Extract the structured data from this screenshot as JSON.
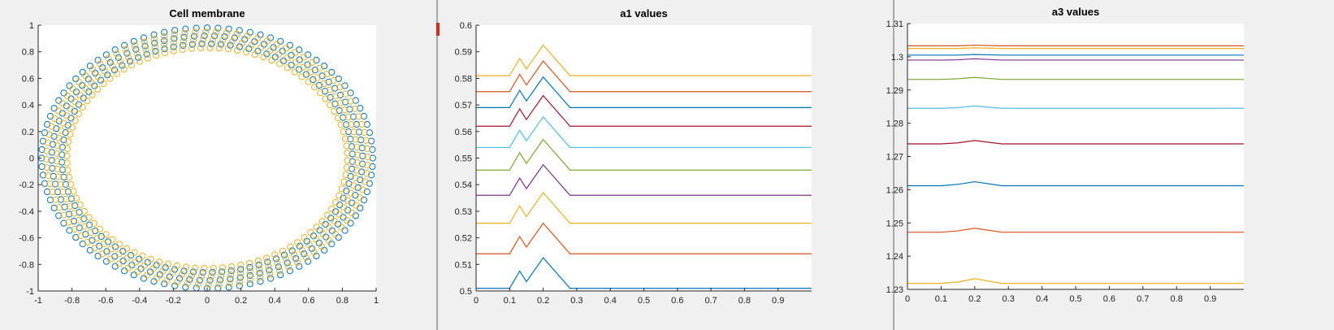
{
  "chart_data": [
    {
      "type": "scatter",
      "title": "Cell membrane",
      "xlim": [
        -1,
        1
      ],
      "ylim": [
        -1,
        1
      ],
      "xticks": [
        -1,
        -0.8,
        -0.6,
        -0.4,
        -0.2,
        0,
        0.2,
        0.4,
        0.6,
        0.8,
        1
      ],
      "yticks": [
        -1,
        -0.8,
        -0.6,
        -0.4,
        -0.2,
        0,
        0.2,
        0.4,
        0.6,
        0.8,
        1
      ],
      "xtick_labels": [
        "-1",
        "-0.8",
        "-0.6",
        "-0.4",
        "-0.2",
        "0",
        "0.2",
        "0.4",
        "0.6",
        "0.8",
        "1"
      ],
      "ytick_labels": [
        "-1",
        "-0.8",
        "-0.6",
        "-0.4",
        "-0.2",
        "0",
        "0.2",
        "0.4",
        "0.6",
        "0.8",
        "1"
      ],
      "marker": "circle-open",
      "points_per_ring": 96,
      "series": [
        {
          "color": "#0072bd",
          "rings": [
            {
              "rx": 0.98,
              "ry": 0.98,
              "phase": 0
            },
            {
              "rx": 0.92,
              "ry": 0.92,
              "phase": 0.018
            },
            {
              "rx": 0.86,
              "ry": 0.86,
              "phase": 0.036
            }
          ]
        },
        {
          "color": "#edb120",
          "rings": [
            {
              "rx": 0.95,
              "ry": 0.95,
              "phase": 0.009
            },
            {
              "rx": 0.89,
              "ry": 0.89,
              "phase": 0.027
            },
            {
              "rx": 0.83,
              "ry": 0.83,
              "phase": 0.045
            }
          ]
        }
      ]
    },
    {
      "type": "line",
      "title": "a1 values",
      "xlim": [
        0,
        1
      ],
      "ylim": [
        0.5,
        0.6
      ],
      "xticks": [
        0,
        0.1,
        0.2,
        0.3,
        0.4,
        0.5,
        0.6,
        0.7,
        0.8,
        0.9
      ],
      "xtick_labels": [
        "0",
        "0.1",
        "0.2",
        "0.3",
        "0.4",
        "0.5",
        "0.6",
        "0.7",
        "0.8",
        "0.9"
      ],
      "yticks": [
        0.5,
        0.51,
        0.52,
        0.53,
        0.54,
        0.55,
        0.56,
        0.57,
        0.58,
        0.59,
        0.6
      ],
      "ytick_labels": [
        "0.5",
        "0.51",
        "0.52",
        "0.53",
        "0.54",
        "0.55",
        "0.56",
        "0.57",
        "0.58",
        "0.59",
        "0.6"
      ],
      "x": [
        0,
        0.1,
        0.13,
        0.15,
        0.2,
        0.28,
        1
      ],
      "series": [
        {
          "color": "#0072bd",
          "values": [
            0.501,
            0.501,
            0.5075,
            0.5035,
            0.5125,
            0.501,
            0.501
          ]
        },
        {
          "color": "#d95319",
          "values": [
            0.514,
            0.514,
            0.5205,
            0.5165,
            0.5255,
            0.514,
            0.514
          ]
        },
        {
          "color": "#edb120",
          "values": [
            0.5255,
            0.5255,
            0.532,
            0.528,
            0.537,
            0.5255,
            0.5255
          ]
        },
        {
          "color": "#7e2f8e",
          "values": [
            0.536,
            0.536,
            0.5425,
            0.5385,
            0.5475,
            0.536,
            0.536
          ]
        },
        {
          "color": "#77ac30",
          "values": [
            0.5455,
            0.5455,
            0.552,
            0.548,
            0.557,
            0.5455,
            0.5455
          ]
        },
        {
          "color": "#4dbeee",
          "values": [
            0.554,
            0.554,
            0.5605,
            0.5565,
            0.5655,
            0.554,
            0.554
          ]
        },
        {
          "color": "#a2142f",
          "values": [
            0.562,
            0.562,
            0.5685,
            0.5645,
            0.5735,
            0.562,
            0.562
          ]
        },
        {
          "color": "#0072bd",
          "values": [
            0.569,
            0.569,
            0.5755,
            0.5715,
            0.5805,
            0.569,
            0.569
          ]
        },
        {
          "color": "#d95319",
          "values": [
            0.575,
            0.575,
            0.5815,
            0.5775,
            0.5865,
            0.575,
            0.575
          ]
        },
        {
          "color": "#edb120",
          "values": [
            0.581,
            0.581,
            0.5875,
            0.5835,
            0.5925,
            0.581,
            0.581
          ]
        }
      ]
    },
    {
      "type": "line",
      "title": "a3 values",
      "xlim": [
        0,
        1
      ],
      "ylim": [
        1.23,
        1.31
      ],
      "xticks": [
        0,
        0.1,
        0.2,
        0.3,
        0.4,
        0.5,
        0.6,
        0.7,
        0.8,
        0.9
      ],
      "xtick_labels": [
        "0",
        "0.1",
        "0.2",
        "0.3",
        "0.4",
        "0.5",
        "0.6",
        "0.7",
        "0.8",
        "0.9"
      ],
      "yticks": [
        1.23,
        1.24,
        1.25,
        1.26,
        1.27,
        1.28,
        1.29,
        1.3,
        1.31
      ],
      "ytick_labels": [
        "1.23",
        "1.24",
        "1.25",
        "1.26",
        "1.27",
        "1.28",
        "1.29",
        "1.3",
        "1.31"
      ],
      "x": [
        0,
        0.1,
        0.15,
        0.2,
        0.28,
        1
      ],
      "series": [
        {
          "color": "#edb120",
          "values": [
            1.2318,
            1.2318,
            1.2322,
            1.2332,
            1.2318,
            1.2318
          ]
        },
        {
          "color": "#d95319",
          "values": [
            1.2472,
            1.2472,
            1.2476,
            1.2484,
            1.2472,
            1.2472
          ]
        },
        {
          "color": "#0072bd",
          "values": [
            1.2612,
            1.2612,
            1.2616,
            1.2624,
            1.2612,
            1.2612
          ]
        },
        {
          "color": "#a2142f",
          "values": [
            1.2738,
            1.2738,
            1.2741,
            1.2748,
            1.2738,
            1.2738
          ]
        },
        {
          "color": "#4dbeee",
          "values": [
            1.2845,
            1.2845,
            1.2847,
            1.2852,
            1.2845,
            1.2845
          ]
        },
        {
          "color": "#77ac30",
          "values": [
            1.2932,
            1.2932,
            1.2934,
            1.2938,
            1.2932,
            1.2932
          ]
        },
        {
          "color": "#7e2f8e",
          "values": [
            1.299,
            1.299,
            1.2991,
            1.2994,
            1.299,
            1.299
          ]
        },
        {
          "color": "#0072bd",
          "values": [
            1.3005,
            1.3005,
            1.3005,
            1.3007,
            1.3005,
            1.3005
          ]
        },
        {
          "color": "#edb120",
          "values": [
            1.3025,
            1.3025,
            1.3025,
            1.3027,
            1.3025,
            1.3025
          ]
        },
        {
          "color": "#d95319",
          "values": [
            1.3033,
            1.3033,
            1.3033,
            1.3035,
            1.3033,
            1.3033
          ]
        }
      ]
    }
  ]
}
